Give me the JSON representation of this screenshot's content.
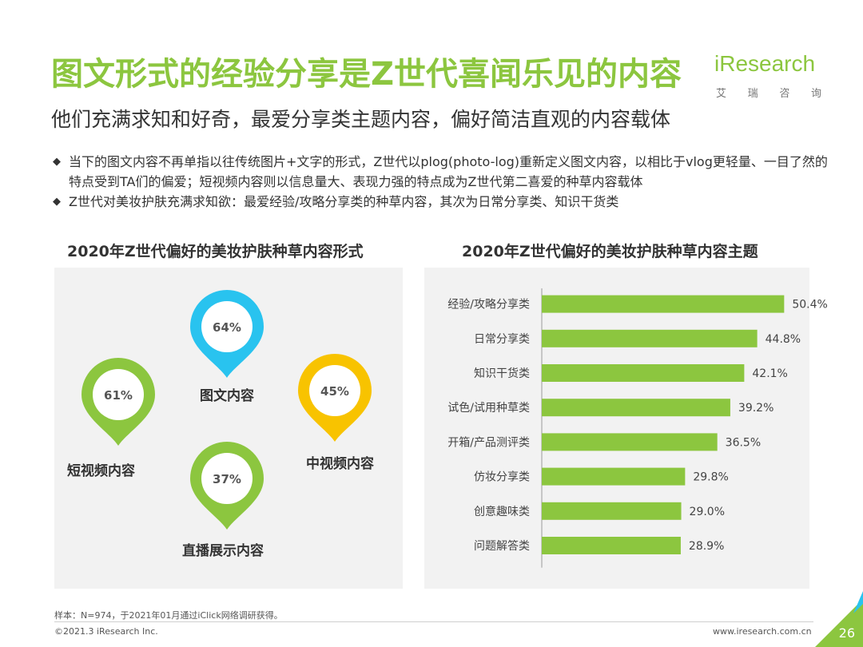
{
  "header": {
    "title": "图文形式的经验分享是Z世代喜闻乐见的内容",
    "subtitle": "他们充满求知和好奇，最爱分享类主题内容，偏好简洁直观的内容载体"
  },
  "logo": {
    "text": "iResearch",
    "sub": [
      "艾",
      "瑞",
      "咨",
      "询"
    ]
  },
  "bullets": [
    "当下的图文内容不再单指以往传统图片+文字的形式，Z世代以plog(photo-log)重新定义图文内容，以相比于vlog更轻量、一目了然的特点受到TA们的偏爱；短视频内容则以信息量大、表现力强的特点成为Z世代第二喜爱的种草内容载体",
    "Z世代对美妆护肤充满求知欲：最爱经验/攻略分享类的种草内容，其次为日常分享类、知识干货类"
  ],
  "left_chart": {
    "title": "2020年Z世代偏好的美妆护肤种草内容形式",
    "items": [
      {
        "label": "图文内容",
        "value": "64%",
        "color": "#29c3ef"
      },
      {
        "label": "短视频内容",
        "value": "61%",
        "color": "#8cc63f"
      },
      {
        "label": "中视频内容",
        "value": "45%",
        "color": "#f8c300"
      },
      {
        "label": "直播展示内容",
        "value": "37%",
        "color": "#8cc63f"
      }
    ]
  },
  "chart_data": {
    "type": "bar",
    "orientation": "horizontal",
    "title": "2020年Z世代偏好的美妆护肤种草内容主题",
    "categories": [
      "经验/攻略分享类",
      "日常分享类",
      "知识干货类",
      "试色/试用种草类",
      "开箱/产品测评类",
      "仿妆分享类",
      "创意趣味类",
      "问题解答类"
    ],
    "values": [
      50.4,
      44.8,
      42.1,
      39.2,
      36.5,
      29.8,
      29.0,
      28.9
    ],
    "value_labels": [
      "50.4%",
      "44.8%",
      "42.1%",
      "39.2%",
      "36.5%",
      "29.8%",
      "29.0%",
      "28.9%"
    ],
    "xlim": [
      0,
      54
    ],
    "bar_color": "#8cc63f",
    "xlabel": "",
    "ylabel": ""
  },
  "footer": {
    "note": "样本：N=974，于2021年01月通过iClick网络调研获得。",
    "copyright": "©2021.3 iResearch Inc.",
    "url": "www.iresearch.com.cn",
    "page": "26"
  },
  "colors": {
    "accent": "#8cc63f",
    "blue": "#29c3ef",
    "yellow": "#f8c300"
  }
}
